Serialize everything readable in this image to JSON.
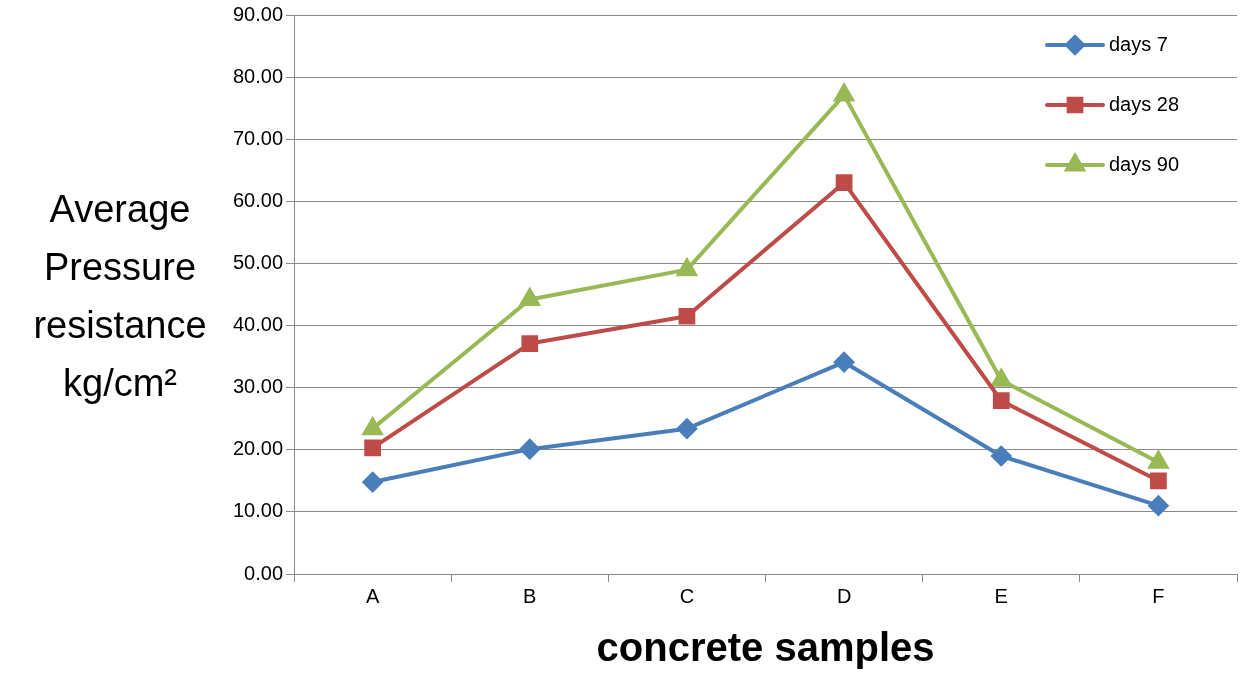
{
  "chart_data": {
    "type": "line",
    "xlabel": "concrete samples",
    "ylabel": "Average Pressure resistance kg/cm²",
    "categories": [
      "A",
      "B",
      "C",
      "D",
      "E",
      "F"
    ],
    "series": [
      {
        "name": "days 7",
        "color": "#4a7ebb",
        "marker": "diamond",
        "values": [
          14.8,
          20.1,
          23.4,
          34.1,
          19.0,
          11.0
        ]
      },
      {
        "name": "days 28",
        "color": "#be4b48",
        "marker": "square",
        "values": [
          20.3,
          37.1,
          41.5,
          63.0,
          27.9,
          15.0
        ]
      },
      {
        "name": "days 90",
        "color": "#98b954",
        "marker": "triangle",
        "values": [
          23.4,
          44.2,
          49.0,
          77.1,
          31.2,
          18.0
        ]
      }
    ],
    "ylim": [
      0,
      90
    ],
    "yticks": [
      {
        "value": 0,
        "label": "0.00"
      },
      {
        "value": 10,
        "label": "10.00"
      },
      {
        "value": 20,
        "label": "20.00"
      },
      {
        "value": 30,
        "label": "30.00"
      },
      {
        "value": 40,
        "label": "40.00"
      },
      {
        "value": 50,
        "label": "50.00"
      },
      {
        "value": 60,
        "label": "60.00"
      },
      {
        "value": 70,
        "label": "70.00"
      },
      {
        "value": 80,
        "label": "80.00"
      },
      {
        "value": 90,
        "label": "90.00"
      }
    ],
    "grid": "y",
    "legend": "top right",
    "line_style": "solid"
  }
}
